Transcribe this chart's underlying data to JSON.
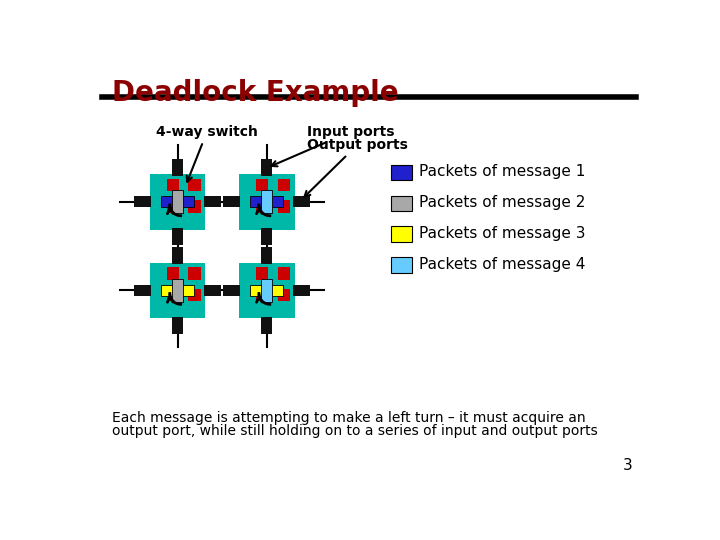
{
  "title": "Deadlock Example",
  "title_color": "#8B0000",
  "title_fontsize": 20,
  "background_color": "#ffffff",
  "teal": "#00B8A8",
  "red": "#CC0000",
  "black": "#111111",
  "blue": "#2020CC",
  "gray": "#A8A8A8",
  "yellow": "#FFFF00",
  "light_blue": "#66CCFF",
  "label_4way": "4-way switch",
  "label_input": "Input ports",
  "label_output": "Output ports",
  "legend_items": [
    {
      "color": "#2020CC",
      "label": "Packets of message 1"
    },
    {
      "color": "#A8A8A8",
      "label": "Packets of message 2"
    },
    {
      "color": "#FFFF00",
      "label": "Packets of message 3"
    },
    {
      "color": "#66CCFF",
      "label": "Packets of message 4"
    }
  ],
  "bottom_text1": "Each message is attempting to make a left turn – it must acquire an",
  "bottom_text2": "output port, while still holding on to a series of input and output ports",
  "page_number": "3"
}
